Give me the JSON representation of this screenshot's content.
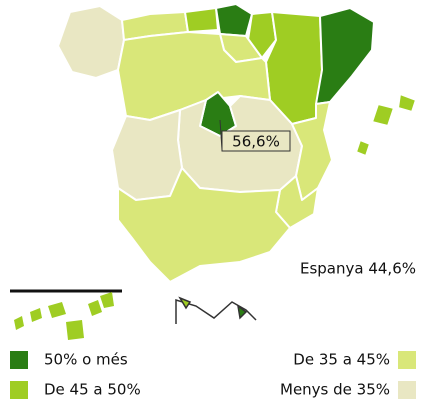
{
  "callout": "56,6%",
  "total": "Espanya 44,6%",
  "legend": [
    {
      "label": "50% o més",
      "color": "#2a7d14"
    },
    {
      "label": "De 45 a 50%",
      "color": "#9fcd23"
    },
    {
      "label": "De 35 a 45%",
      "color": "#d9e779"
    },
    {
      "label": "Menys de 35%",
      "color": "#e9e7c3"
    }
  ]
}
